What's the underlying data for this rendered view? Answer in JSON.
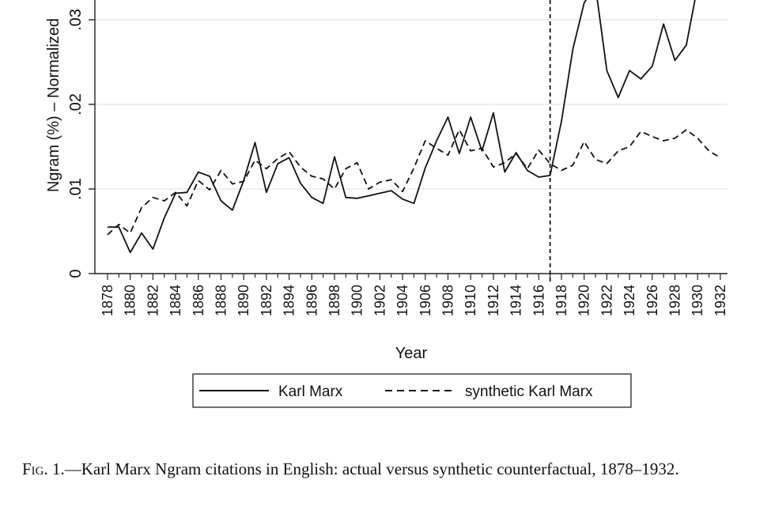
{
  "chart_data": {
    "type": "line",
    "xlabel": "Year",
    "ylabel": "Ngram (%) – Normalized",
    "xlim": [
      1877,
      1933
    ],
    "ylim": [
      0,
      0.033
    ],
    "y_ticks": [
      0,
      0.01,
      0.02,
      0.03
    ],
    "y_tick_labels": [
      "0",
      ".01",
      ".02",
      ".03"
    ],
    "x_ticks": [
      1878,
      1880,
      1882,
      1884,
      1886,
      1888,
      1890,
      1892,
      1894,
      1896,
      1898,
      1900,
      1902,
      1904,
      1906,
      1908,
      1910,
      1912,
      1914,
      1916,
      1918,
      1920,
      1922,
      1924,
      1926,
      1928,
      1930,
      1932
    ],
    "x_tick_labels": [
      "1878",
      "1880",
      "1882",
      "1884",
      "1886",
      "1888",
      "1890",
      "1892",
      "1894",
      "1896",
      "1898",
      "1900",
      "1902",
      "1904",
      "1906",
      "1908",
      "1910",
      "1912",
      "1914",
      "1916",
      "1918",
      "1920",
      "1922",
      "1924",
      "1926",
      "1928",
      "1930",
      "1932"
    ],
    "treatment_year": 1917,
    "grid": "horizontal",
    "legend_position": "bottom",
    "x": [
      1878,
      1879,
      1880,
      1881,
      1882,
      1883,
      1884,
      1885,
      1886,
      1887,
      1888,
      1889,
      1890,
      1891,
      1892,
      1893,
      1894,
      1895,
      1896,
      1897,
      1898,
      1899,
      1900,
      1901,
      1902,
      1903,
      1904,
      1905,
      1906,
      1907,
      1908,
      1909,
      1910,
      1911,
      1912,
      1913,
      1914,
      1915,
      1916,
      1917,
      1918,
      1919,
      1920,
      1921,
      1922,
      1923,
      1924,
      1925,
      1926,
      1927,
      1928,
      1929,
      1930,
      1931,
      1932
    ],
    "series": [
      {
        "name": "Karl Marx",
        "style": "solid",
        "values": [
          0.0055,
          0.0055,
          0.0025,
          0.0048,
          0.0029,
          0.0066,
          0.0095,
          0.0096,
          0.012,
          0.0115,
          0.0086,
          0.0075,
          0.011,
          0.0155,
          0.0096,
          0.013,
          0.0137,
          0.0107,
          0.009,
          0.0083,
          0.0138,
          0.009,
          0.0089,
          0.0092,
          0.0095,
          0.0098,
          0.0088,
          0.0083,
          0.0125,
          0.0157,
          0.0185,
          0.0142,
          0.0185,
          0.0145,
          0.019,
          0.012,
          0.0143,
          0.0122,
          0.0114,
          0.0116,
          0.018,
          0.0265,
          0.032,
          0.034,
          0.024,
          0.0208,
          0.024,
          0.023,
          0.0245,
          0.0295,
          0.0252,
          0.027,
          0.034,
          null,
          null
        ]
      },
      {
        "name": "synthetic Karl Marx",
        "style": "dashed",
        "values": [
          0.0046,
          0.0058,
          0.0048,
          0.0078,
          0.009,
          0.0086,
          0.0096,
          0.008,
          0.011,
          0.0099,
          0.0122,
          0.0106,
          0.0109,
          0.0134,
          0.0124,
          0.0136,
          0.0144,
          0.0126,
          0.0115,
          0.0112,
          0.01,
          0.0124,
          0.0131,
          0.01,
          0.0108,
          0.0111,
          0.0097,
          0.0125,
          0.0157,
          0.0148,
          0.014,
          0.017,
          0.0145,
          0.0148,
          0.0126,
          0.0131,
          0.0142,
          0.0124,
          0.0146,
          0.013,
          0.0122,
          0.0128,
          0.0156,
          0.0135,
          0.013,
          0.0145,
          0.015,
          0.0168,
          0.0162,
          0.0157,
          0.016,
          0.017,
          0.016,
          0.0145,
          0.0137
        ]
      }
    ]
  },
  "caption": {
    "lead": "Fig",
    "rest": ". 1.—Karl Marx Ngram citations in English: actual versus synthetic counterfactual, 1878–1932."
  }
}
